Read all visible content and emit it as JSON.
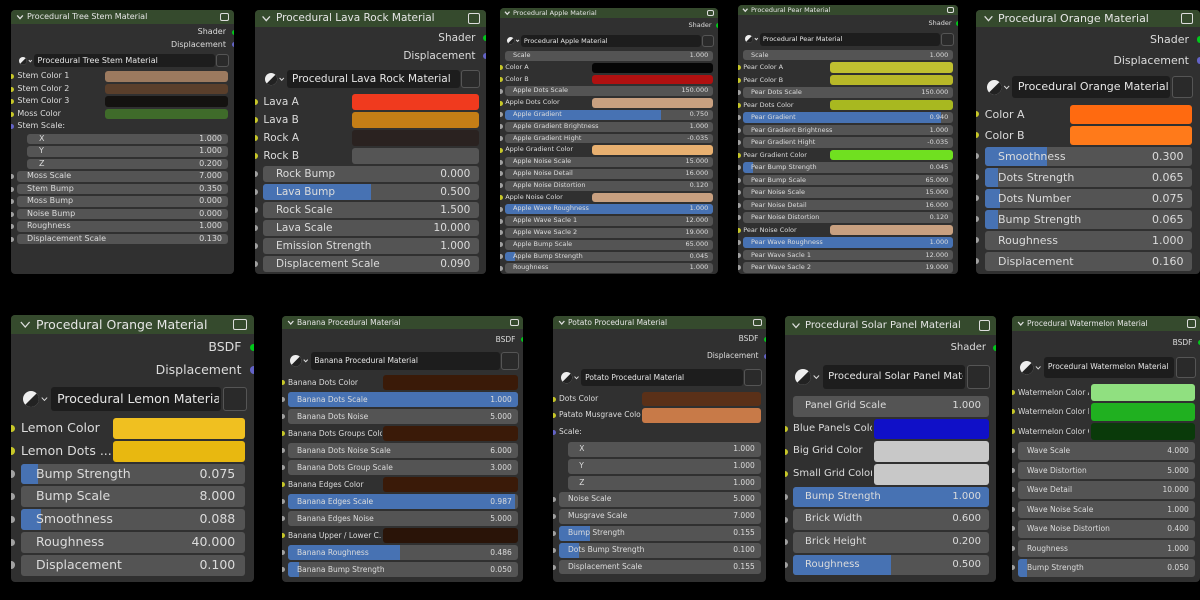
{
  "panels": [
    {
      "title": "Procedural Tree Stem Material",
      "outputs": [
        {
          "label": "Shader",
          "color": "#00c81a"
        },
        {
          "label": "Displacement",
          "color": "#6363c7"
        }
      ],
      "material": "Procedural Tree Stem Material",
      "rows": [
        {
          "label": "Stem Color 1",
          "color": "#9c7a5f"
        },
        {
          "label": "Stem Color 2",
          "color": "#5a3f2b"
        },
        {
          "label": "Stem Color 3",
          "color": "#141210"
        },
        {
          "label": "Moss Color",
          "color": "#3f6b2a"
        },
        {
          "label": "Stem Scale:",
          "kind": "label"
        },
        {
          "label": "X",
          "value": "1.000",
          "kind": "sub"
        },
        {
          "label": "Y",
          "value": "1.000",
          "kind": "sub"
        },
        {
          "label": "Z",
          "value": "0.200",
          "kind": "sub"
        },
        {
          "label": "Moss Scale",
          "value": "7.000"
        },
        {
          "label": "Stem Bump",
          "value": "0.350"
        },
        {
          "label": "Moss Bump",
          "value": "0.000"
        },
        {
          "label": "Noise Bump",
          "value": "0.000"
        },
        {
          "label": "Roughness",
          "value": "1.000"
        },
        {
          "label": "Displacement Scale",
          "value": "0.130"
        }
      ]
    },
    {
      "title": "Procedural Lava Rock Material",
      "outputs": [
        {
          "label": "Shader",
          "color": "#00c81a"
        },
        {
          "label": "Displacement",
          "color": "#6363c7"
        }
      ],
      "material": "Procedural Lava Rock Material",
      "rows": [
        {
          "label": "Lava A",
          "color": "#f03a1e"
        },
        {
          "label": "Lava B",
          "color": "#c47e16"
        },
        {
          "label": "Rock A",
          "color": "#2a2220"
        },
        {
          "label": "Rock B",
          "color": "#555555"
        },
        {
          "label": "Rock Bump",
          "value": "0.000"
        },
        {
          "label": "Lava Bump",
          "value": "0.500",
          "slider": true
        },
        {
          "label": "Rock Scale",
          "value": "1.500"
        },
        {
          "label": "Lava Scale",
          "value": "10.000"
        },
        {
          "label": "Emission Strength",
          "value": "1.000"
        },
        {
          "label": "Displacement Scale",
          "value": "0.090"
        }
      ]
    },
    {
      "title": "Procedural Apple Material",
      "outputs": [
        {
          "label": "Shader",
          "color": "#00c81a"
        }
      ],
      "material": "Procedural Apple Material",
      "rows": [
        {
          "label": "Scale",
          "value": "1.000",
          "kind": "field"
        },
        {
          "label": "Color A",
          "color": "#050505"
        },
        {
          "label": "Color B",
          "color": "#b01010"
        },
        {
          "label": "Apple Dots Scale",
          "value": "150.000"
        },
        {
          "label": "Apple Dots Color",
          "color": "#c8a080"
        },
        {
          "label": "Apple Gradient",
          "value": "0.750",
          "slider": true
        },
        {
          "label": "Apple Gradient Brightness",
          "value": "1.000"
        },
        {
          "label": "Apple Gradient Hight",
          "value": "-0.035"
        },
        {
          "label": "Apple Gradient Color",
          "color": "#e8b070"
        },
        {
          "label": "Apple Noise Scale",
          "value": "15.000"
        },
        {
          "label": "Apple Noise Detail",
          "value": "16.000"
        },
        {
          "label": "Apple Noise Distortion",
          "value": "0.120"
        },
        {
          "label": "Apple Noise Color",
          "color": "#c8a080"
        },
        {
          "label": "Apple Wave Roughness",
          "value": "1.000",
          "slider": true
        },
        {
          "label": "Apple Wave Sacle 1",
          "value": "12.000"
        },
        {
          "label": "Apple Wave Sacle 2",
          "value": "19.000"
        },
        {
          "label": "Apple Bump Scale",
          "value": "65.000"
        },
        {
          "label": "Apple Bump Strength",
          "value": "0.045",
          "slider": true
        },
        {
          "label": "Roughness",
          "value": "1.000"
        }
      ]
    },
    {
      "title": "Procedural Pear Material",
      "outputs": [
        {
          "label": "Shader",
          "color": "#00c81a"
        }
      ],
      "material": "Procedural Pear Material",
      "rows": [
        {
          "label": "Scale",
          "value": "1.000",
          "kind": "field"
        },
        {
          "label": "Pear Color A",
          "color": "#c0c030"
        },
        {
          "label": "Pear Color B",
          "color": "#b8b828"
        },
        {
          "label": "Pear Dots Scale",
          "value": "150.000"
        },
        {
          "label": "Pear Dots Color",
          "color": "#a8b820"
        },
        {
          "label": "Pear Gradient",
          "value": "0.940",
          "slider": true
        },
        {
          "label": "Pear Gradient Brightness",
          "value": "1.000"
        },
        {
          "label": "Pear Gradient Hight",
          "value": "-0.035"
        },
        {
          "label": "Pear Gradient Color",
          "color": "#70e020"
        },
        {
          "label": "Pear Bump Strength",
          "value": "0.045",
          "slider": true
        },
        {
          "label": "Pear Bump Scale",
          "value": "65.000"
        },
        {
          "label": "Pear Noise Scale",
          "value": "15.000"
        },
        {
          "label": "Pear Noise Detail",
          "value": "16.000"
        },
        {
          "label": "Pear Noise Distortion",
          "value": "0.120"
        },
        {
          "label": "Pear Noise Color",
          "color": "#c8a080"
        },
        {
          "label": "Pear Wave Roughness",
          "value": "1.000",
          "slider": true
        },
        {
          "label": "Pear Wave Sacle 1",
          "value": "12.000"
        },
        {
          "label": "Pear Wave Sacle 2",
          "value": "19.000"
        }
      ]
    },
    {
      "title": "Procedural Orange Material",
      "outputs": [
        {
          "label": "Shader",
          "color": "#00c81a"
        },
        {
          "label": "Displacement",
          "color": "#6363c7"
        }
      ],
      "material": "Procedural Orange Material",
      "rows": [
        {
          "label": "Color A",
          "color": "#ff6a10"
        },
        {
          "label": "Color B",
          "color": "#ff7a1a"
        },
        {
          "label": "Smoothness",
          "value": "0.300",
          "slider": true
        },
        {
          "label": "Dots Strength",
          "value": "0.065",
          "slider": true
        },
        {
          "label": "Dots Number",
          "value": "0.075",
          "slider": true
        },
        {
          "label": "Bump Strength",
          "value": "0.065",
          "slider": true
        },
        {
          "label": "Roughness",
          "value": "1.000"
        },
        {
          "label": "Displacement",
          "value": "0.160"
        }
      ]
    },
    {
      "title": "Procedural Orange Material",
      "outputs": [
        {
          "label": "BSDF",
          "color": "#00c81a"
        },
        {
          "label": "Displacement",
          "color": "#6363c7"
        }
      ],
      "material": "Procedural Lemon Material",
      "rows": [
        {
          "label": "Lemon Color",
          "color": "#f0c020"
        },
        {
          "label": "Lemon Dots ...",
          "color": "#e8b810"
        },
        {
          "label": "Bump Strength",
          "value": "0.075",
          "slider": true
        },
        {
          "label": "Bump Scale",
          "value": "8.000"
        },
        {
          "label": "Smoothness",
          "value": "0.088",
          "slider": true
        },
        {
          "label": "Roughness",
          "value": "40.000"
        },
        {
          "label": "Displacement",
          "value": "0.100"
        }
      ]
    },
    {
      "title": "Banana Procedural Material",
      "outputs": [
        {
          "label": "BSDF",
          "color": "#00c81a"
        }
      ],
      "material": "Banana Procedural Material",
      "rows": [
        {
          "label": "Banana Dots Color",
          "color": "#3a1a08"
        },
        {
          "label": "Banana Dots Scale",
          "value": "1.000",
          "slider": true
        },
        {
          "label": "Banana Dots Noise",
          "value": "5.000"
        },
        {
          "label": "Banana Dots Groups Color",
          "color": "#3a1a08"
        },
        {
          "label": "Banana Dots Noise Scale",
          "value": "6.000"
        },
        {
          "label": "Banana Dots Group Scale",
          "value": "3.000"
        },
        {
          "label": "Banana Edges Color",
          "color": "#3a1a08"
        },
        {
          "label": "Banana Edges Scale",
          "value": "0.987",
          "slider": true
        },
        {
          "label": "Banana Edges Noise",
          "value": "5.000"
        },
        {
          "label": "Banana Upper / Lower C...",
          "color": "#2a1408"
        },
        {
          "label": "Banana Roughness",
          "value": "0.486",
          "slider": true
        },
        {
          "label": "Banana Bump Strength",
          "value": "0.050",
          "slider": true
        }
      ]
    },
    {
      "title": "Potato Procedural Material",
      "outputs": [
        {
          "label": "BSDF",
          "color": "#00c81a"
        },
        {
          "label": "Displacement",
          "color": "#6363c7"
        }
      ],
      "material": "Potato Procedural Material",
      "rows": [
        {
          "label": "Dots Color",
          "color": "#5a3018"
        },
        {
          "label": "Patato Musgrave Color",
          "color": "#c87a48"
        },
        {
          "label": "Scale:",
          "kind": "label"
        },
        {
          "label": "X",
          "value": "1.000",
          "kind": "sub"
        },
        {
          "label": "Y",
          "value": "1.000",
          "kind": "sub"
        },
        {
          "label": "Z",
          "value": "1.000",
          "kind": "sub"
        },
        {
          "label": "Noise Scale",
          "value": "5.000"
        },
        {
          "label": "Musgrave Scale",
          "value": "7.000"
        },
        {
          "label": "Bump Strength",
          "value": "0.155",
          "slider": true
        },
        {
          "label": "Dots Bump Strength",
          "value": "0.100",
          "slider": true
        },
        {
          "label": "Displacement Scale",
          "value": "0.155"
        }
      ]
    },
    {
      "title": "Procedural Solar Panel Material",
      "outputs": [
        {
          "label": "Shader",
          "color": "#00c81a"
        }
      ],
      "material": "Procedural Solar Panel Material",
      "rows": [
        {
          "label": "Panel Grid Scale",
          "value": "1.000",
          "kind": "field"
        },
        {
          "label": "Blue Panels Color",
          "color": "#1010c8"
        },
        {
          "label": "Big Grid Color",
          "color": "#c8c8c8"
        },
        {
          "label": "Small Grid Color",
          "color": "#c8c8c8"
        },
        {
          "label": "Bump Strength",
          "value": "1.000",
          "slider": true
        },
        {
          "label": "Brick Width",
          "value": "0.600"
        },
        {
          "label": "Brick Height",
          "value": "0.200"
        },
        {
          "label": "Roughness",
          "value": "0.500",
          "slider": true
        }
      ]
    },
    {
      "title": "Procedural Watermelon Material",
      "outputs": [
        {
          "label": "BSDF",
          "color": "#00c81a"
        }
      ],
      "material": "Procedural Watermelon Material",
      "rows": [
        {
          "label": "Watermelon Color A",
          "color": "#90e080"
        },
        {
          "label": "Watermelon Color B",
          "color": "#20b020"
        },
        {
          "label": "Watermelon Color C",
          "color": "#0a3a0a"
        },
        {
          "label": "Wave Scale",
          "value": "4.000"
        },
        {
          "label": "Wave Distortion",
          "value": "5.000"
        },
        {
          "label": "Wave Detail",
          "value": "10.000"
        },
        {
          "label": "Wave Noise Scale",
          "value": "1.000"
        },
        {
          "label": "Wave Noise Distortion",
          "value": "0.400"
        },
        {
          "label": "Roughness",
          "value": "1.000"
        },
        {
          "label": "Bump Strength",
          "value": "0.050",
          "slider": true
        }
      ]
    }
  ]
}
